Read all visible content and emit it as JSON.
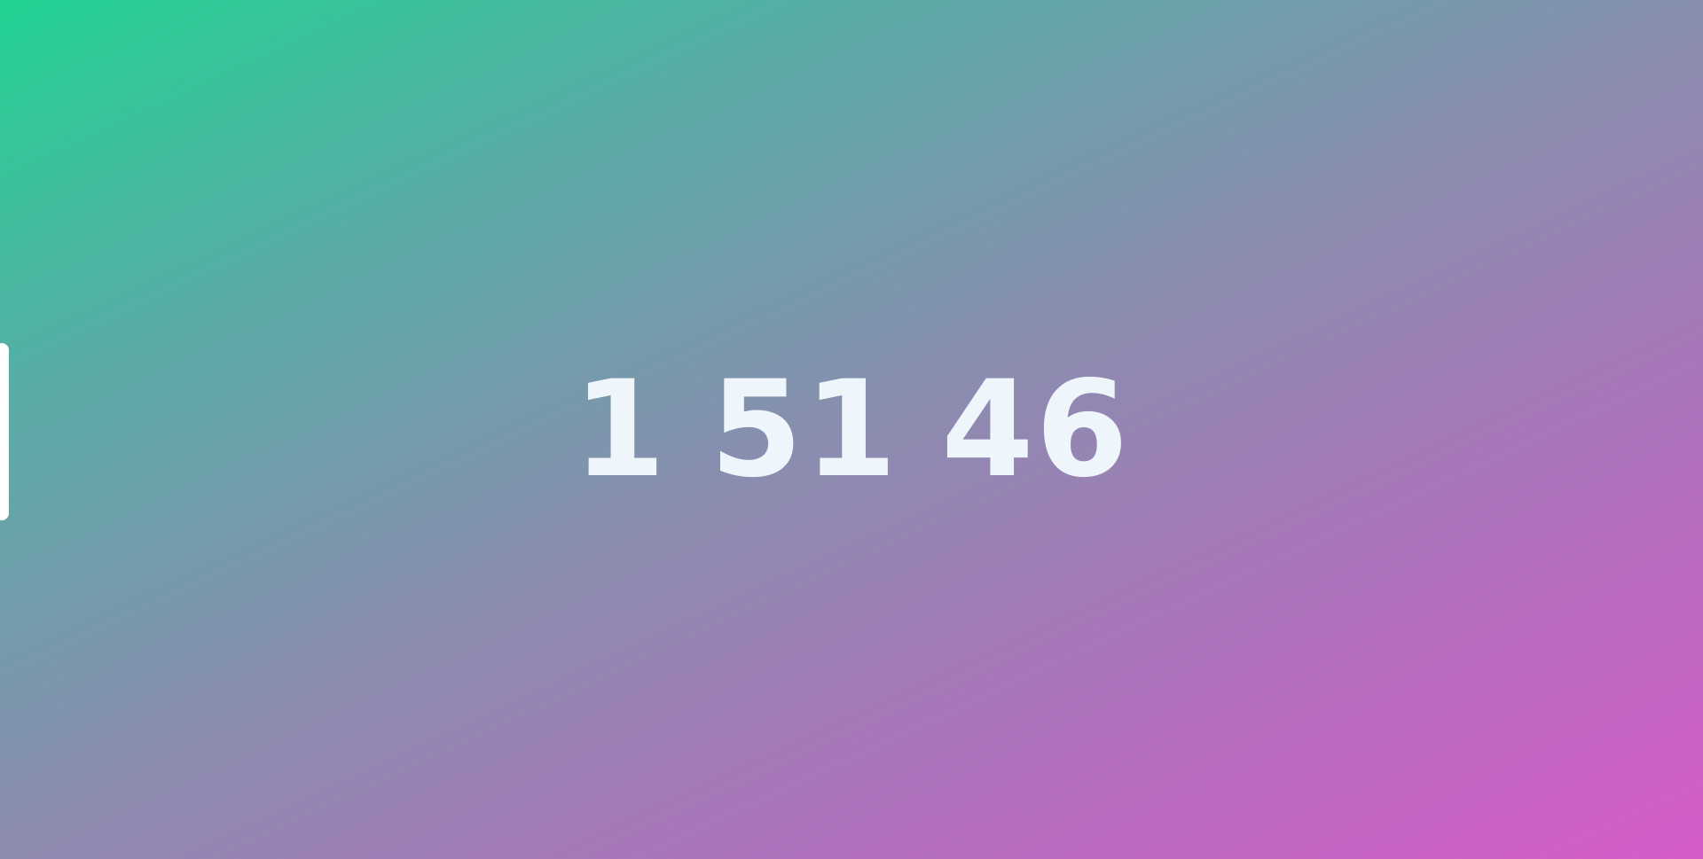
{
  "clock": {
    "hours": "1",
    "minutes": "51",
    "seconds": "46"
  },
  "colors": {
    "gradient_start": "#22d393",
    "gradient_end": "#d55cc8",
    "text": "#eef6fc"
  }
}
